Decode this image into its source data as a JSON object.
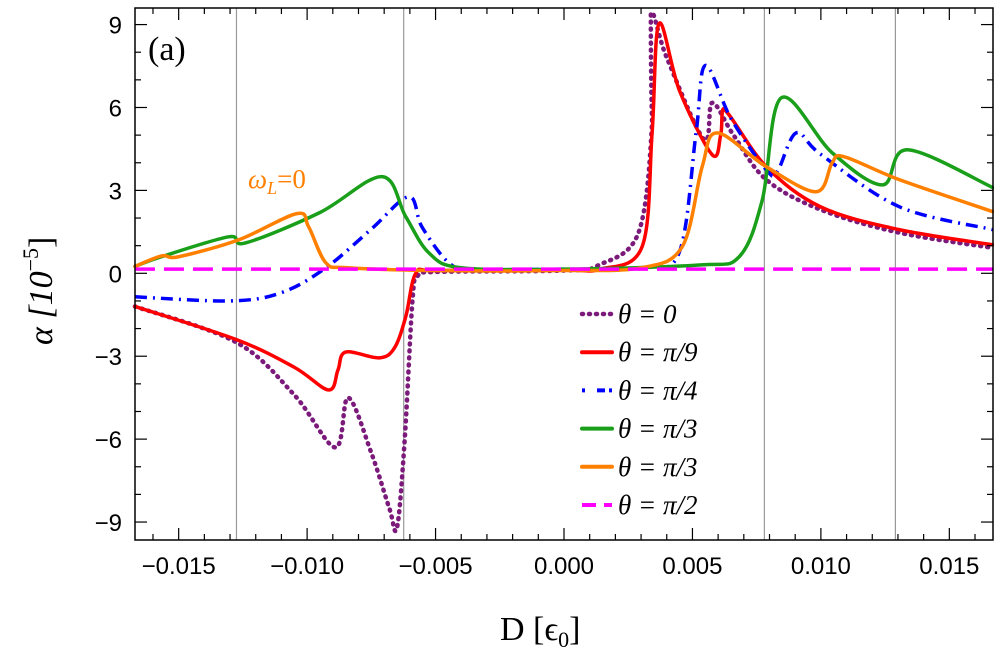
{
  "chart_data": {
    "type": "line",
    "panel_label": "(a)",
    "annotation": {
      "text_main": "ω",
      "text_sub": "L",
      "text_tail": "=0",
      "x": -0.0105,
      "y": 3.2,
      "color": "#ff8000"
    },
    "xlabel": {
      "main": "D [",
      "symbol": "ϵ",
      "sub": "0",
      "tail": "]"
    },
    "ylabel": {
      "main": "α [10",
      "sup": "−5",
      "tail": "]"
    },
    "xlim": [
      -0.0167,
      0.0167
    ],
    "ylim": [
      -9.65,
      9.6
    ],
    "x_ticks": [
      -0.015,
      -0.01,
      -0.005,
      0.0,
      0.005,
      0.01,
      0.015
    ],
    "x_tick_labels": [
      "−0.015",
      "−0.010",
      "−0.005",
      "0.000",
      "0.005",
      "0.010",
      "0.015"
    ],
    "y_ticks": [
      -9,
      -6,
      -3,
      0,
      3,
      6,
      9
    ],
    "y_tick_labels": [
      "−9",
      "−6",
      "−3",
      "0",
      "3",
      "6",
      "9"
    ],
    "reference_lines_x": [
      -0.01275,
      -0.00624,
      0.0078,
      0.0129
    ],
    "grid": false,
    "legend_position": "bottom-center-right",
    "series": [
      {
        "name": "θ = 0",
        "color": "#7b1a7b",
        "style": "dotted",
        "x": [
          -0.0167,
          -0.01275,
          -0.0105,
          -0.0089,
          -0.0084,
          -0.0075,
          -0.0068,
          -0.0065,
          -0.0062,
          -0.0059,
          -0.0057,
          -0.005,
          0.0,
          0.00136,
          0.0029,
          0.00343,
          0.00338,
          0.004,
          0.00545,
          0.00577,
          0.0066,
          0.00787,
          0.01,
          0.01305,
          0.0167
        ],
        "y": [
          -1.2,
          -2.5,
          -4.4,
          -6.3,
          -4.5,
          -6.5,
          -8.5,
          -9.2,
          -6.0,
          -1.0,
          -0.1,
          0.05,
          0.1,
          0.3,
          1.47,
          5.5,
          9.37,
          7.8,
          4.84,
          6.17,
          5.0,
          3.39,
          2.3,
          1.47,
          0.92
        ]
      },
      {
        "name": "θ = π/9",
        "color": "#ff0000",
        "style": "solid",
        "x": [
          -0.0167,
          -0.01275,
          -0.0105,
          -0.00916,
          -0.0088,
          -0.0085,
          -0.0072,
          -0.0066,
          -0.00616,
          -0.00577,
          -0.005,
          0.0,
          0.0014,
          0.00304,
          0.00343,
          0.0037,
          0.0045,
          0.00577,
          0.0061,
          0.00624,
          0.00787,
          0.01,
          0.01305,
          0.0167
        ],
        "y": [
          -1.2,
          -2.4,
          -3.4,
          -4.22,
          -3.5,
          -2.85,
          -3.06,
          -2.7,
          -1.57,
          0.0,
          0.1,
          0.12,
          0.15,
          0.96,
          5.1,
          9.04,
          6.6,
          4.29,
          5.0,
          5.92,
          3.86,
          2.4,
          1.58,
          1.03
        ]
      },
      {
        "name": "θ = π/4",
        "color": "#0000ff",
        "style": "dashdot",
        "x": [
          -0.0167,
          -0.013,
          -0.011,
          -0.00927,
          -0.0075,
          -0.00604,
          -0.00553,
          -0.00448,
          -0.0035,
          0.0,
          0.003,
          0.00448,
          0.00514,
          0.0055,
          0.0065,
          0.00787,
          0.0083,
          0.00904,
          0.01,
          0.01305,
          0.0167
        ],
        "y": [
          -0.85,
          -1.0,
          -0.7,
          0.2,
          1.6,
          2.77,
          1.68,
          0.38,
          0.15,
          0.15,
          0.2,
          0.74,
          5.08,
          7.52,
          5.6,
          3.75,
          3.68,
          5.08,
          4.3,
          2.41,
          1.58
        ]
      },
      {
        "name": "θ = π/3",
        "color": "#1a9f1a",
        "style": "solid",
        "x": [
          -0.0167,
          -0.01567,
          -0.01305,
          -0.0124,
          -0.0095,
          -0.00709,
          -0.00616,
          -0.00526,
          -0.004,
          0.0,
          0.00526,
          0.00682,
          0.00772,
          0.00846,
          0.01044,
          0.0124,
          0.01337,
          0.0167
        ],
        "y": [
          0.25,
          0.6,
          1.32,
          1.1,
          2.2,
          3.5,
          2.05,
          0.74,
          0.2,
          0.15,
          0.3,
          0.6,
          2.66,
          6.35,
          4.36,
          3.2,
          4.47,
          3.1
        ]
      },
      {
        "name": "θ = π/3",
        "color": "#ff8000",
        "style": "solid",
        "x": [
          -0.0167,
          -0.01567,
          -0.015,
          -0.01267,
          -0.0104,
          -0.00994,
          -0.00927,
          -0.0084,
          -0.005,
          0.0,
          0.003,
          0.0046,
          0.00538,
          0.00596,
          0.00787,
          0.00982,
          0.01044,
          0.0109,
          0.01305,
          0.0167
        ],
        "y": [
          0.25,
          0.63,
          0.6,
          1.21,
          2.16,
          1.68,
          0.38,
          0.2,
          0.1,
          0.1,
          0.2,
          0.96,
          3.86,
          5.08,
          3.86,
          2.95,
          4.0,
          4.22,
          3.39,
          2.23
        ]
      },
      {
        "name": "θ = π/2",
        "color": "#ff00ff",
        "style": "dashed",
        "x": [
          -0.0167,
          0.0167
        ],
        "y": [
          0.15,
          0.15
        ]
      }
    ]
  }
}
